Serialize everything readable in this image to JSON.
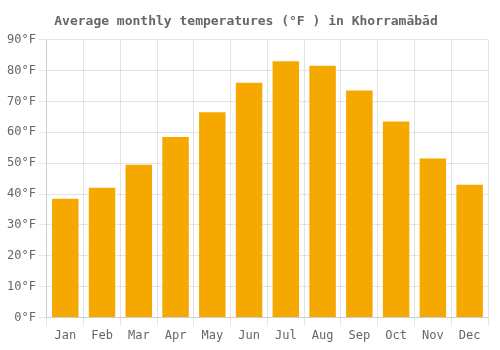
{
  "chart_data": {
    "type": "bar",
    "title": "Average monthly temperatures (°F ) in Khorramābād",
    "categories": [
      "Jan",
      "Feb",
      "Mar",
      "Apr",
      "May",
      "Jun",
      "Jul",
      "Aug",
      "Sep",
      "Oct",
      "Nov",
      "Dec"
    ],
    "values": [
      38.5,
      42,
      49.5,
      58.5,
      66.5,
      76,
      83,
      81.5,
      73.5,
      63.5,
      51.5,
      43
    ],
    "color": "#F5A800",
    "ylim": [
      0,
      90
    ],
    "yticks": [
      {
        "value": 0,
        "label": "0°F"
      },
      {
        "value": 10,
        "label": "10°F"
      },
      {
        "value": 20,
        "label": "20°F"
      },
      {
        "value": 30,
        "label": "30°F"
      },
      {
        "value": 40,
        "label": "40°F"
      },
      {
        "value": 50,
        "label": "50°F"
      },
      {
        "value": 60,
        "label": "60°F"
      },
      {
        "value": 70,
        "label": "70°F"
      },
      {
        "value": 80,
        "label": "80°F"
      },
      {
        "value": 90,
        "label": "90°F"
      }
    ],
    "grid": true
  }
}
